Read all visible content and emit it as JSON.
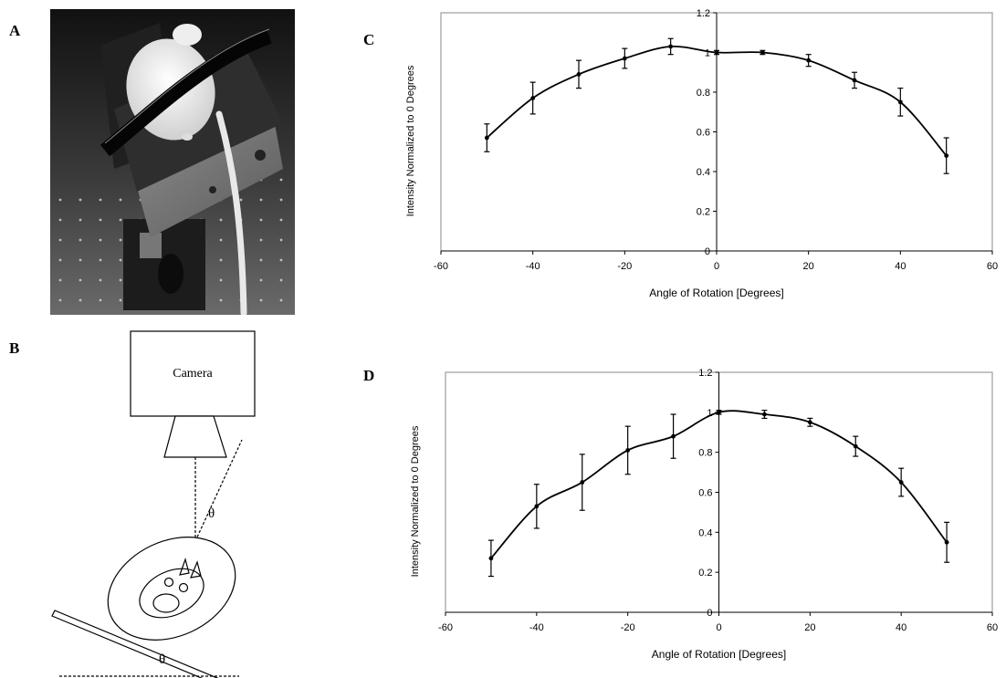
{
  "panels": {
    "a": {
      "letter": "A"
    },
    "b": {
      "letter": "B",
      "camera_label": "Camera",
      "theta_upper": "θ",
      "theta_lower": "θ"
    },
    "c": {
      "letter": "C"
    },
    "d": {
      "letter": "D"
    }
  },
  "chart_data": [
    {
      "type": "line",
      "panel": "C",
      "xlabel": "Angle of Rotation [Degrees]",
      "ylabel": "Intensity Normalized to 0 Degrees",
      "xlim": [
        -60,
        60
      ],
      "ylim": [
        0,
        1.2
      ],
      "x_ticks": [
        -60,
        -40,
        -20,
        0,
        20,
        40,
        60
      ],
      "y_ticks": [
        0,
        0.2,
        0.4,
        0.6,
        0.8,
        1,
        1.2
      ],
      "x_tick_labels": [
        "-60",
        "-40",
        "-20",
        "0",
        "20",
        "40",
        "60"
      ],
      "y_tick_labels": [
        "0",
        "0.2",
        "0.4",
        "0.6",
        "0.8",
        "1",
        "1.2"
      ],
      "grid": false,
      "x": [
        -50,
        -40,
        -30,
        -20,
        -10,
        0,
        10,
        20,
        30,
        40,
        50
      ],
      "values": [
        0.57,
        0.77,
        0.89,
        0.97,
        1.03,
        1.0,
        1.0,
        0.96,
        0.86,
        0.75,
        0.48
      ],
      "error": [
        0.07,
        0.08,
        0.07,
        0.05,
        0.04,
        0.01,
        0.01,
        0.03,
        0.04,
        0.07,
        0.09
      ]
    },
    {
      "type": "line",
      "panel": "D",
      "xlabel": "Angle of Rotation [Degrees]",
      "ylabel": "Intensity Normalized to 0 Degrees",
      "xlim": [
        -60,
        60
      ],
      "ylim": [
        0,
        1.2
      ],
      "x_ticks": [
        -60,
        -40,
        -20,
        0,
        20,
        40,
        60
      ],
      "y_ticks": [
        0,
        0.2,
        0.4,
        0.6,
        0.8,
        1,
        1.2
      ],
      "x_tick_labels": [
        "-60",
        "-40",
        "-20",
        "0",
        "20",
        "40",
        "60"
      ],
      "y_tick_labels": [
        "0",
        "0.2",
        "0.4",
        "0.6",
        "0.8",
        "1",
        "1.2"
      ],
      "grid": false,
      "x": [
        -50,
        -40,
        -30,
        -20,
        -10,
        0,
        10,
        20,
        30,
        40,
        50
      ],
      "values": [
        0.27,
        0.53,
        0.65,
        0.81,
        0.88,
        1.0,
        0.99,
        0.95,
        0.83,
        0.65,
        0.35
      ],
      "error": [
        0.09,
        0.11,
        0.14,
        0.12,
        0.11,
        0.01,
        0.02,
        0.02,
        0.05,
        0.07,
        0.1
      ]
    }
  ]
}
